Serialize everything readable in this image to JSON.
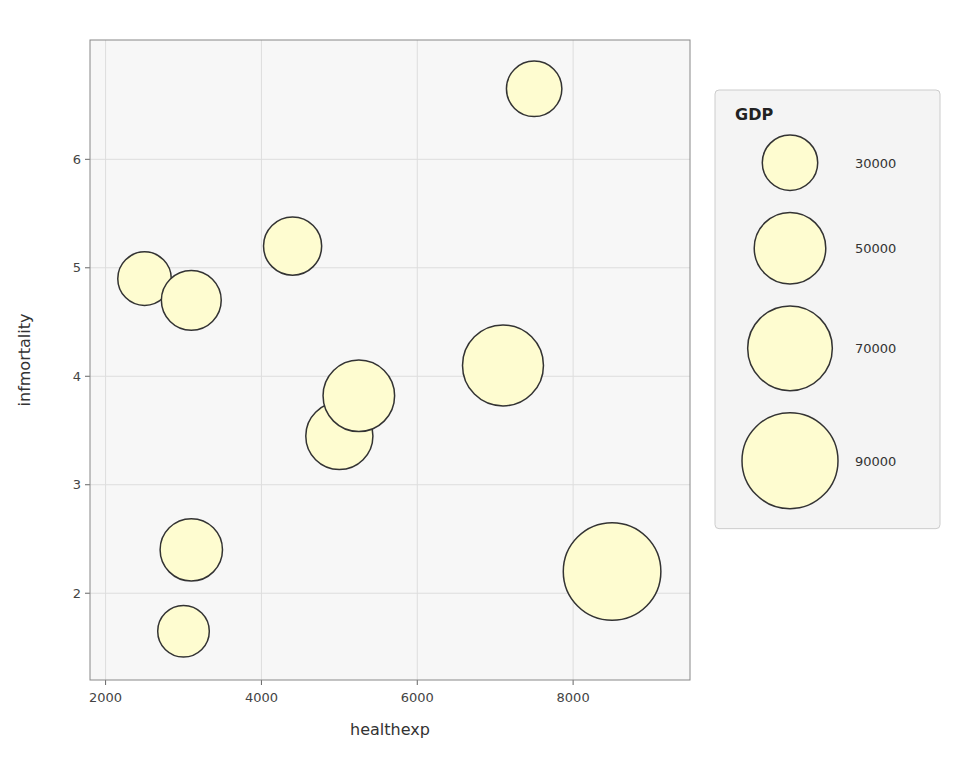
{
  "chart_data": {
    "type": "bubble",
    "xlabel": "healthexp",
    "ylabel": "infmortality",
    "x": [
      2500,
      3100,
      4400,
      5000,
      5250,
      7100,
      7500,
      3100,
      3000,
      8500
    ],
    "values": [
      4.9,
      4.7,
      5.2,
      3.45,
      3.82,
      4.1,
      6.65,
      2.4,
      1.65,
      2.2
    ],
    "sizes": [
      28000,
      35000,
      33000,
      44000,
      50000,
      64000,
      30000,
      38000,
      26000,
      93000
    ],
    "size_legend": {
      "title": "GDP",
      "values": [
        30000,
        50000,
        70000,
        90000
      ]
    },
    "color": "#FEFCD0",
    "xlim": [
      1800,
      9500
    ],
    "ylim": [
      1.2,
      7.1
    ],
    "xticks": [
      2000,
      4000,
      6000,
      8000
    ],
    "yticks": [
      2,
      3,
      4,
      5,
      6
    ],
    "grid": true,
    "legend": "right"
  }
}
